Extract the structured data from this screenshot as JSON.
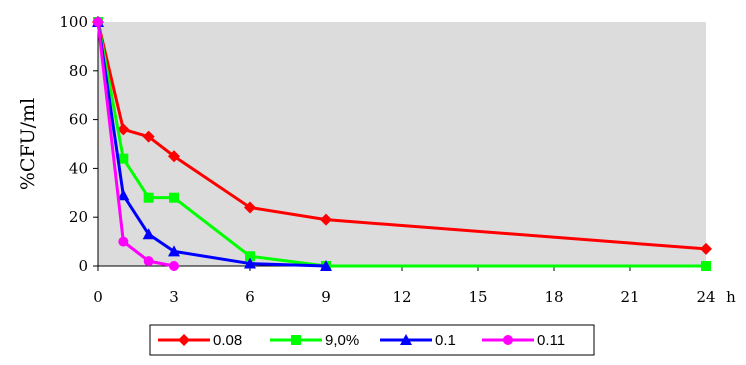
{
  "chart_data": {
    "type": "line",
    "xlabel": "h",
    "ylabel": "%CFU/ml",
    "xlim": [
      0,
      24
    ],
    "ylim": [
      0,
      100
    ],
    "xticks": [
      "0",
      "3",
      "6",
      "9",
      "12",
      "15",
      "18",
      "21",
      "24"
    ],
    "yticks": [
      "0",
      "20",
      "40",
      "60",
      "80",
      "100"
    ],
    "grid": false,
    "plot_background": "#dcdcdc",
    "legend_position": "bottom",
    "series": [
      {
        "name": "0.08",
        "color": "#ff0000",
        "marker": "diamond",
        "x": [
          0,
          1,
          2,
          3,
          6,
          9,
          24
        ],
        "y": [
          100,
          56,
          53,
          45,
          24,
          19,
          7
        ]
      },
      {
        "name": "9,0%",
        "color": "#00ff00",
        "marker": "square",
        "x": [
          0,
          1,
          2,
          3,
          6,
          9,
          24
        ],
        "y": [
          100,
          44,
          28,
          28,
          4,
          0,
          0
        ]
      },
      {
        "name": "0.1",
        "color": "#0000ff",
        "marker": "triangle",
        "x": [
          0,
          1,
          2,
          3,
          6,
          9
        ],
        "y": [
          100,
          29,
          13,
          6,
          1,
          0
        ]
      },
      {
        "name": "0.11",
        "color": "#ff00ff",
        "marker": "circle",
        "x": [
          0,
          1,
          2,
          3
        ],
        "y": [
          100,
          10,
          2,
          0
        ]
      }
    ]
  }
}
